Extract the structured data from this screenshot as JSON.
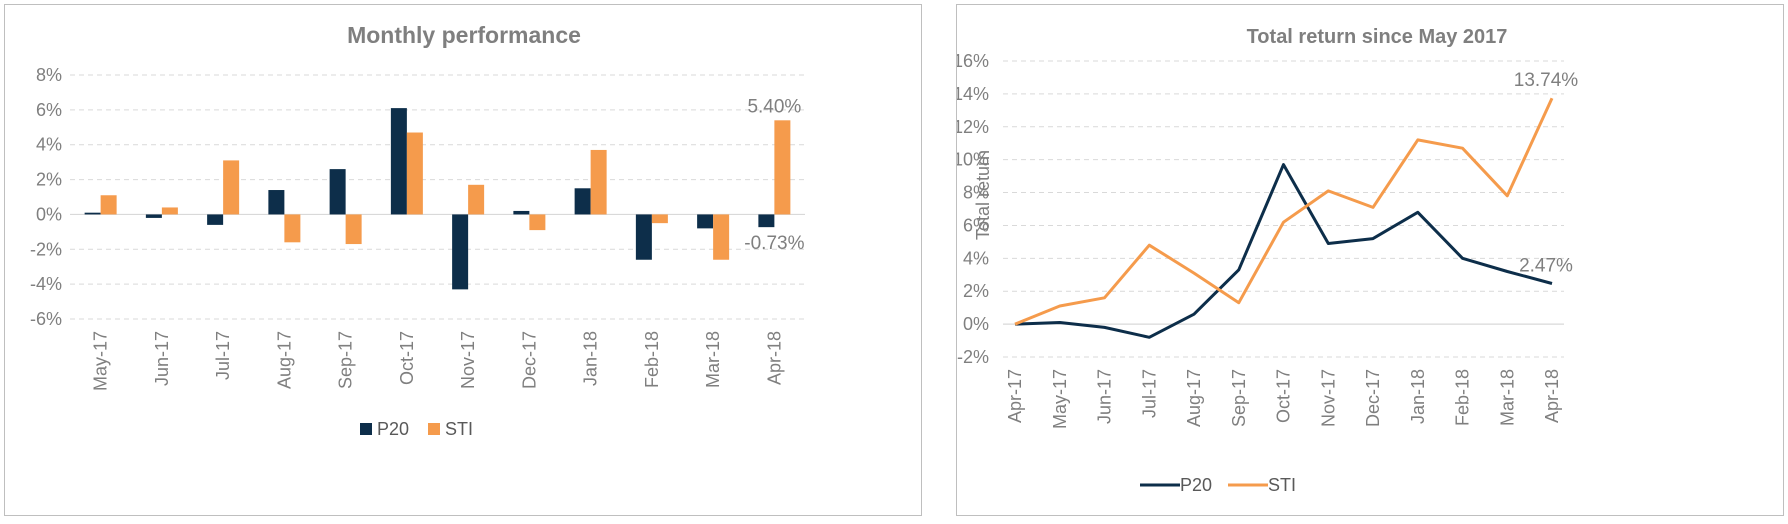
{
  "charts": [
    {
      "type": "bar",
      "title": "Monthly performance",
      "categories": [
        "May-17",
        "Jun-17",
        "Jul-17",
        "Aug-17",
        "Sep-17",
        "Oct-17",
        "Nov-17",
        "Dec-17",
        "Jan-18",
        "Feb-18",
        "Mar-18",
        "Apr-18"
      ],
      "series": [
        {
          "name": "P20",
          "color": "#0d2e4a",
          "values": [
            0.1,
            -0.2,
            -0.6,
            1.4,
            2.6,
            6.1,
            -4.3,
            0.2,
            1.5,
            -2.6,
            -0.8,
            -0.73
          ]
        },
        {
          "name": "STI",
          "color": "#f59b4c",
          "values": [
            1.1,
            0.4,
            3.1,
            -1.6,
            -1.7,
            4.7,
            1.7,
            -0.9,
            3.7,
            -0.5,
            -2.6,
            5.4
          ]
        }
      ],
      "y_ticks": [
        "8%",
        "6%",
        "4%",
        "2%",
        "0%",
        "-2%",
        "-4%",
        "-6%"
      ],
      "ylim": [
        -6,
        8
      ],
      "annotations": [
        {
          "text": "5.40%",
          "series": "STI",
          "category": "Apr-18"
        },
        {
          "text": "-0.73%",
          "series": "P20",
          "category": "Apr-18"
        }
      ],
      "legend_position": "bottom",
      "grid": true
    },
    {
      "type": "line",
      "title": "Total return since May 2017",
      "ylabel": "Total return",
      "categories": [
        "Apr-17",
        "May-17",
        "Jun-17",
        "Jul-17",
        "Aug-17",
        "Sep-17",
        "Oct-17",
        "Nov-17",
        "Dec-17",
        "Jan-18",
        "Feb-18",
        "Mar-18",
        "Apr-18"
      ],
      "series": [
        {
          "name": "P20",
          "color": "#0d2e4a",
          "values": [
            0,
            0.1,
            -0.2,
            -0.8,
            0.6,
            3.3,
            9.7,
            4.9,
            5.2,
            6.8,
            4.0,
            3.2,
            2.47
          ]
        },
        {
          "name": "STI",
          "color": "#f59b4c",
          "values": [
            0,
            1.1,
            1.6,
            4.8,
            3.1,
            1.3,
            6.2,
            8.1,
            7.1,
            11.2,
            10.7,
            7.8,
            13.74
          ]
        }
      ],
      "y_ticks": [
        "16%",
        "14%",
        "12%",
        "10%",
        "8%",
        "6%",
        "4%",
        "2%",
        "0%",
        "-2%"
      ],
      "ylim": [
        -2,
        16
      ],
      "annotations": [
        {
          "text": "13.74%",
          "series": "STI",
          "category": "Apr-18"
        },
        {
          "text": "2.47%",
          "series": "P20",
          "category": "Apr-18"
        }
      ],
      "legend_position": "bottom",
      "grid": true
    }
  ]
}
